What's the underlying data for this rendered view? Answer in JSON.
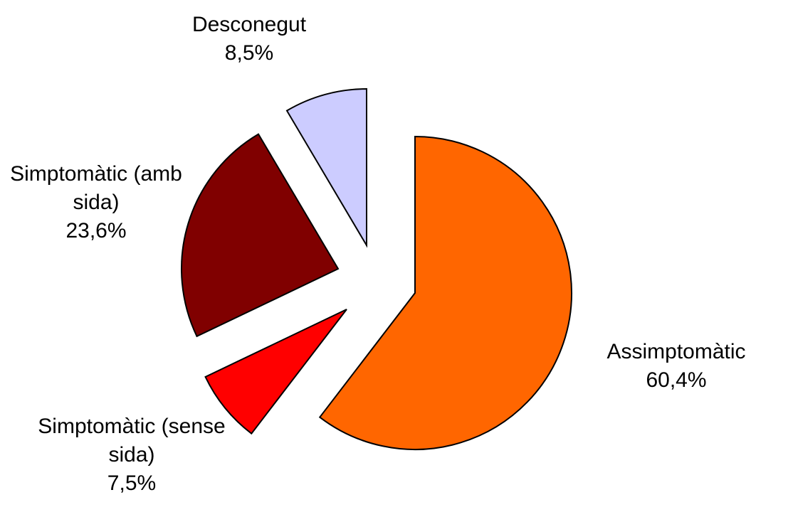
{
  "chart_data": {
    "type": "pie",
    "categories": [
      "Assimptomàtic",
      "Simptomàtic (sense sida)",
      "Simptomàtic (amb sida)",
      "Desconegut"
    ],
    "values": [
      60.4,
      7.5,
      23.6,
      8.5
    ],
    "value_labels": [
      "60,4%",
      "7,5%",
      "23,6%",
      "8,5%"
    ],
    "colors": [
      "#ff6600",
      "#ff0000",
      "#800000",
      "#ccccff"
    ]
  }
}
